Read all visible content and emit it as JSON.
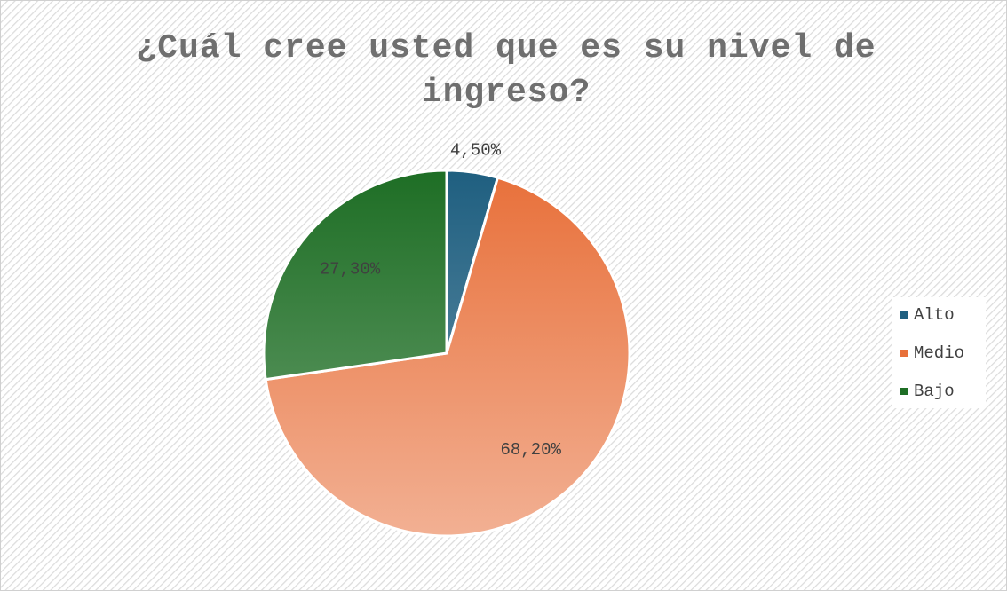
{
  "chart_data": {
    "type": "pie",
    "title": "¿Cuál cree usted que es su nivel de ingreso?",
    "categories": [
      "Alto",
      "Medio",
      "Bajo"
    ],
    "values": [
      4.5,
      68.2,
      27.3
    ],
    "value_labels": [
      "4,50%",
      "68,20%",
      "27,30%"
    ],
    "colors": [
      "#1f5f80",
      "#e8703a",
      "#1e6e25"
    ],
    "legend": "right"
  }
}
